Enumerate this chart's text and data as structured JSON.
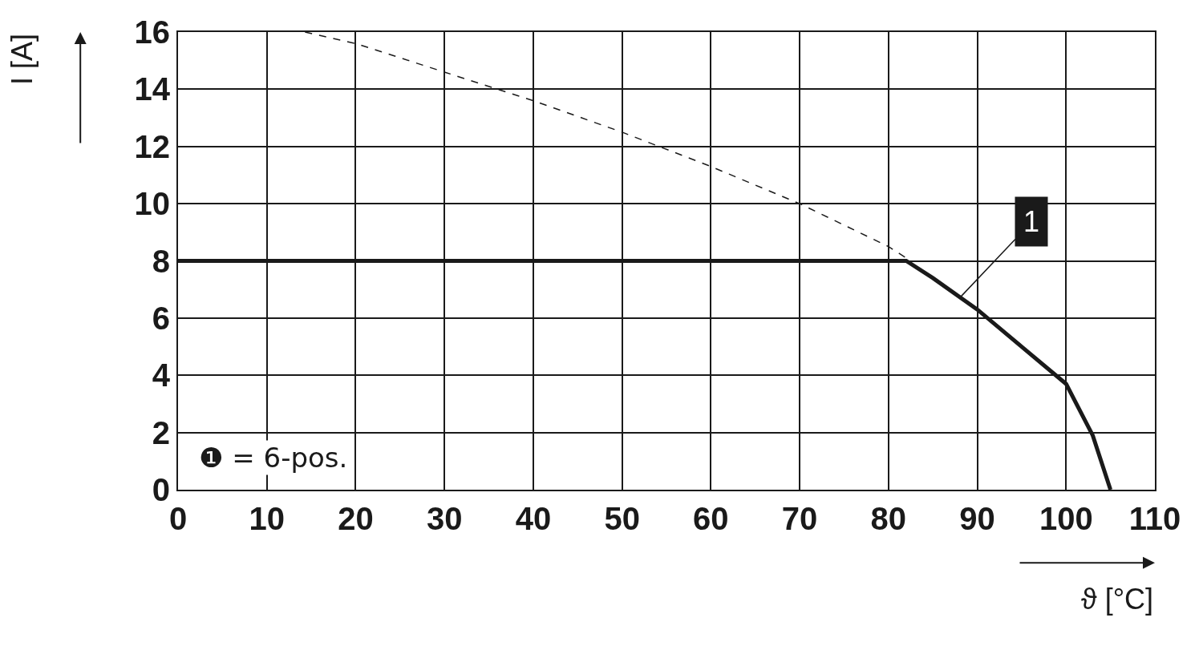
{
  "chart_data": {
    "type": "line",
    "xlabel": "ϑ [°C]",
    "ylabel": "I [A]",
    "series": [
      {
        "color": "#1a1a1a",
        "line_style": "solid",
        "x": [
          0,
          82,
          85,
          90,
          95,
          100,
          103,
          105
        ],
        "values": [
          8,
          8,
          7.4,
          6.3,
          5.0,
          3.7,
          1.9,
          0
        ]
      },
      {
        "color": "#1a1a1a",
        "line_style": "dashed",
        "x": [
          14.3,
          20,
          30,
          40,
          50,
          60,
          70,
          80,
          82
        ],
        "values": [
          16,
          15.6,
          14.6,
          13.6,
          12.5,
          11.3,
          10.0,
          8.5,
          8.1
        ]
      }
    ],
    "xlim": [
      0,
      110
    ],
    "xticks": [
      0,
      10,
      20,
      30,
      40,
      50,
      60,
      70,
      80,
      90,
      100,
      110
    ],
    "ylim": [
      0,
      16
    ],
    "yticks": [
      0,
      2,
      4,
      6,
      8,
      10,
      12,
      14,
      16
    ],
    "grid": true,
    "legend": false,
    "marker": "none",
    "annotations": [
      {
        "text": "1",
        "x": 88,
        "y": 6.7
      },
      "❶ = 6-pos."
    ]
  }
}
